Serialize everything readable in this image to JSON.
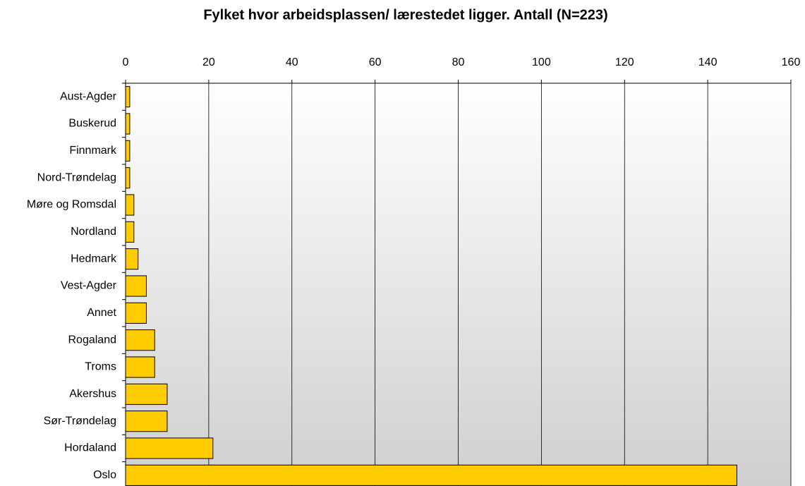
{
  "chart_data": {
    "type": "barh",
    "title": "Fylket hvor arbeidsplassen/ lærestedet ligger. Antall (N=223)",
    "categories": [
      "Aust-Agder",
      "Buskerud",
      "Finnmark",
      "Nord-Trøndelag",
      "Møre og Romsdal",
      "Nordland",
      "Hedmark",
      "Vest-Agder",
      "Annet",
      "Rogaland",
      "Troms",
      "Akershus",
      "Sør-Trøndelag",
      "Hordaland",
      "Oslo"
    ],
    "values": [
      1,
      1,
      1,
      1,
      2,
      2,
      3,
      5,
      5,
      7,
      7,
      10,
      10,
      21,
      147
    ],
    "color": "#ffcc00",
    "xlim": [
      0,
      160
    ],
    "xticks": [
      0,
      20,
      40,
      60,
      80,
      100,
      120,
      140,
      160
    ],
    "grid": true
  }
}
